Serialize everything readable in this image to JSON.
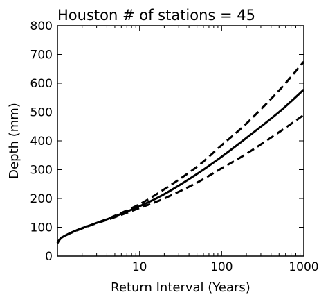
{
  "chart_data": {
    "type": "line",
    "title": "Houston # of stations = 45",
    "xlabel": "Return Interval (Years)",
    "ylabel": "Depth (mm)",
    "xscale": "log",
    "xlim": [
      1,
      1000
    ],
    "ylim": [
      0,
      800
    ],
    "xticks": [
      10,
      100,
      1000
    ],
    "xtick_labels": [
      "10",
      "100",
      "1000"
    ],
    "yticks": [
      0,
      100,
      200,
      300,
      400,
      500,
      600,
      700,
      800
    ],
    "ytick_labels": [
      "0",
      "100",
      "200",
      "300",
      "400",
      "500",
      "600",
      "700",
      "800"
    ],
    "grid": false,
    "legend": false,
    "series": [
      {
        "style": "solid",
        "color": "#000000",
        "x": [
          1,
          1.1,
          1.3,
          1.6,
          2,
          3,
          5,
          10,
          20,
          50,
          100,
          200,
          500,
          1000
        ],
        "y": [
          45,
          62,
          74,
          86,
          97,
          115,
          138,
          173,
          215,
          285,
          345,
          410,
          500,
          578
        ]
      },
      {
        "style": "dashed",
        "color": "#000000",
        "x": [
          1,
          1.1,
          1.3,
          1.6,
          2,
          3,
          5,
          10,
          20,
          50,
          100,
          200,
          500,
          1000
        ],
        "y": [
          45,
          62,
          74,
          85,
          96,
          115,
          140,
          180,
          232,
          310,
          385,
          460,
          575,
          675
        ]
      },
      {
        "style": "dashed",
        "color": "#000000",
        "x": [
          1,
          1.1,
          1.3,
          1.6,
          2,
          3,
          5,
          10,
          20,
          50,
          100,
          200,
          500,
          1000
        ],
        "y": [
          45,
          62,
          74,
          86,
          97,
          114,
          135,
          167,
          200,
          255,
          305,
          355,
          430,
          490
        ]
      }
    ]
  }
}
